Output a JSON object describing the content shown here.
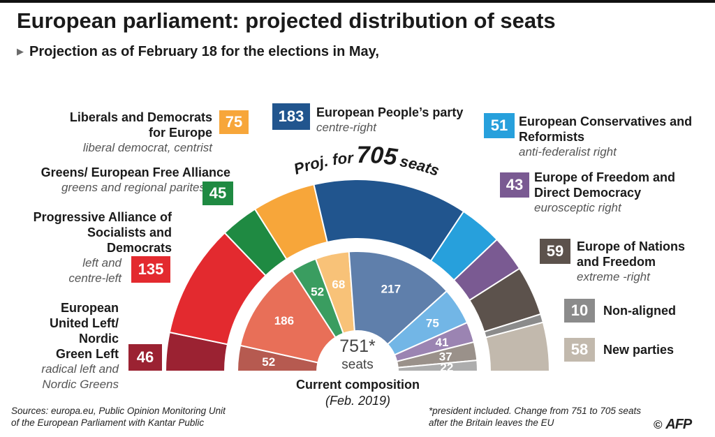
{
  "title": "European parliament: projected distribution of seats",
  "subtitle": "Projection as of February 18 for the elections in May,",
  "arc_label": {
    "prefix": "Proj. for",
    "number": "705",
    "suffix": "seats"
  },
  "center": {
    "number": "751*",
    "unit": "seats"
  },
  "current": {
    "title": "Current composition",
    "date": "(Feb. 2019)"
  },
  "source": [
    "Sources: europa.eu, Public Opinion Monitoring Unit",
    "of the European Parliament with Kantar Public"
  ],
  "note": [
    "*president included. Change from 751 to 705 seats",
    "after the Britain leaves the EU"
  ],
  "credit": {
    "symbol": "©",
    "brand": "AFP"
  },
  "parties": {
    "gue": {
      "name": [
        "European",
        "United Left/",
        "Nordic",
        "Green Left"
      ],
      "desc": [
        "radical left and",
        "Nordic Greens"
      ],
      "projected": "46"
    },
    "sd": {
      "name": [
        "Progressive Alliance of",
        "Socialists and",
        "Democrats"
      ],
      "desc": [
        "left and",
        "centre-left"
      ],
      "projected": "135"
    },
    "greens": {
      "name": [
        "Greens/ European Free Alliance"
      ],
      "desc": [
        "greens and regional parites"
      ],
      "projected": "45"
    },
    "alde": {
      "name": [
        "Liberals and Democrats",
        "for Europe"
      ],
      "desc": [
        "liberal democrat, centrist"
      ],
      "projected": "75"
    },
    "epp": {
      "name": [
        "European People’s party"
      ],
      "desc": [
        "centre-right"
      ],
      "projected": "183"
    },
    "ecr": {
      "name": [
        "European Conservatives and",
        "Reformists"
      ],
      "desc": [
        "anti-federalist right"
      ],
      "projected": "51"
    },
    "efdd": {
      "name": [
        "Europe of Freedom and",
        "Direct Democracy"
      ],
      "desc": [
        "eurosceptic right"
      ],
      "projected": "43"
    },
    "enf": {
      "name": [
        "Europe of Nations",
        "and Freedom"
      ],
      "desc": [
        "extreme -right"
      ],
      "projected": "59"
    },
    "ni": {
      "name": [
        "Non-aligned"
      ],
      "desc": [],
      "projected": "10"
    },
    "new": {
      "name": [
        "New parties"
      ],
      "desc": [],
      "projected": "58"
    }
  },
  "chart_data": [
    {
      "type": "pie",
      "variant": "hemicycle-outer",
      "title": "Proj. for 705 seats",
      "categories": [
        "European United Left/Nordic Green Left",
        "Progressive Alliance of Socialists and Democrats",
        "Greens/ European Free Alliance",
        "Liberals and Democrats for Europe",
        "European People’s party",
        "European Conservatives and Reformists",
        "Europe of Freedom and Direct Democracy",
        "Europe of Nations and Freedom",
        "Non-aligned",
        "New parties"
      ],
      "values": [
        46,
        135,
        45,
        75,
        183,
        51,
        43,
        59,
        10,
        58
      ],
      "colors": [
        "#9b2232",
        "#e32a2f",
        "#1f8a42",
        "#f7a63a",
        "#21558e",
        "#27a0dc",
        "#7a5a92",
        "#5c524c",
        "#8b8b8b",
        "#c2b9ad"
      ],
      "total": 705
    },
    {
      "type": "pie",
      "variant": "hemicycle-inner",
      "title": "Current composition (Feb. 2019)",
      "categories": [
        "European United Left/Nordic Green Left",
        "Progressive Alliance of Socialists and Democrats",
        "Greens/ European Free Alliance",
        "Liberals and Democrats for Europe",
        "European People’s party",
        "European Conservatives and Reformists",
        "Europe of Freedom and Direct Democracy",
        "Europe of Nations and Freedom",
        "Non-aligned"
      ],
      "values": [
        52,
        186,
        52,
        68,
        217,
        75,
        41,
        37,
        22
      ],
      "colors": [
        "#b65a50",
        "#e86f58",
        "#3a9d60",
        "#f8c278",
        "#5f7fab",
        "#72b6e6",
        "#9b84b2",
        "#9a918a",
        "#adadad"
      ],
      "total": 751
    }
  ]
}
